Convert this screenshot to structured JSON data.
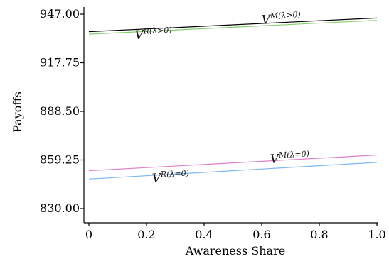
{
  "chart_data": {
    "type": "line",
    "xlabel": "Awareness Share",
    "ylabel": "Payoffs",
    "xlim": [
      0,
      1.0
    ],
    "ylim": [
      830.0,
      947.0
    ],
    "x_ticks": [
      0,
      0.2,
      0.4,
      0.6,
      0.8,
      1.0
    ],
    "x_tick_labels": [
      "0",
      "0.2",
      "0.4",
      "0.6",
      "0.8",
      "1.0"
    ],
    "y_ticks": [
      830.0,
      859.25,
      888.5,
      917.75,
      947.0
    ],
    "y_tick_labels": [
      "830.00",
      "859.25",
      "888.50",
      "917.75",
      "947.00"
    ],
    "grid": false,
    "series": [
      {
        "name_base": "V",
        "name_sup": "M(λ>0)",
        "color": "#000000",
        "x": [
          0,
          1.0
        ],
        "y": [
          936.5,
          944.7
        ]
      },
      {
        "name_base": "V",
        "name_sup": "R(λ>0)",
        "color": "#88d06f",
        "x": [
          0,
          1.0
        ],
        "y": [
          935.0,
          943.3
        ]
      },
      {
        "name_base": "V",
        "name_sup": "M(λ=0)",
        "color": "#e080c8",
        "x": [
          0,
          1.0
        ],
        "y": [
          852.8,
          862.2
        ]
      },
      {
        "name_base": "V",
        "name_sup": "R(λ=0)",
        "color": "#7ab6f0",
        "x": [
          0,
          1.0
        ],
        "y": [
          847.8,
          857.8
        ]
      }
    ]
  }
}
